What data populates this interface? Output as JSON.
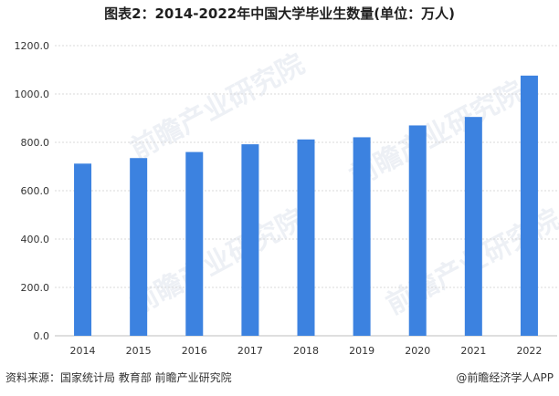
{
  "title": "图表2：2014-2022年中国大学毕业生数量(单位：万人)",
  "watermark_text": "前瞻产业研究院",
  "source": "资料来源：国家统计局 教育部 前瞻产业研究院",
  "brand": "@前瞻经济学人APP",
  "colors": {
    "bar": "#3c82e0",
    "grid": "#d9d9d9",
    "axis": "#bfbfbf"
  },
  "chart_data": {
    "type": "bar",
    "categories": [
      "2014",
      "2015",
      "2016",
      "2017",
      "2018",
      "2019",
      "2020",
      "2021",
      "2022"
    ],
    "values": [
      712,
      735,
      760,
      792,
      812,
      821,
      870,
      905,
      1076
    ],
    "ylim": [
      0,
      1200
    ],
    "yticks": [
      "0.0",
      "200.0",
      "400.0",
      "600.0",
      "800.0",
      "1000.0",
      "1200.0"
    ],
    "grid": "horizontal",
    "legend": "none"
  }
}
